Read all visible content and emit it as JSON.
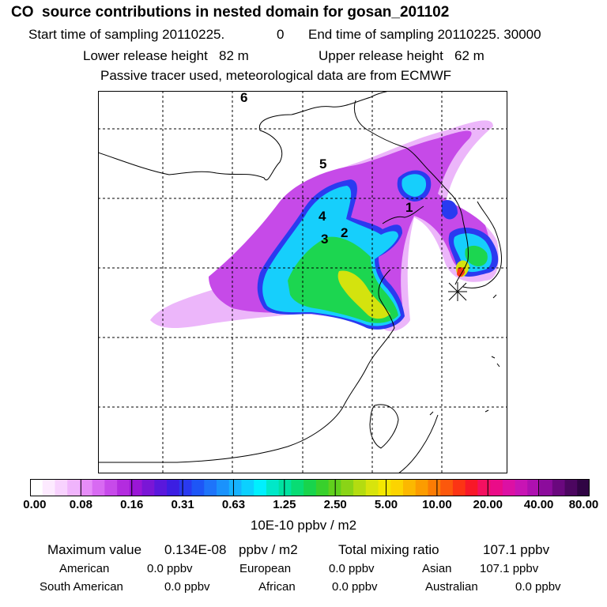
{
  "header": {
    "title": "CO  source contributions in nested domain for gosan_201102",
    "start_label": "Start time of sampling 20110225.",
    "start_value": "0",
    "end_label": "End time of sampling 20110225. 30000",
    "lower_label": "Lower release height   82 m",
    "upper_label": "Upper release height   62 m",
    "note": "Passive tracer used, meteorological data are from ECMWF"
  },
  "chart_data": {
    "type": "heatmap",
    "title": "CO  source contributions in nested domain for gosan_201102",
    "grid": "dashed",
    "region_labels": [
      "1",
      "2",
      "3",
      "4",
      "5",
      "6"
    ],
    "colorbar": {
      "tick_labels": [
        "0.00",
        "0.08",
        "0.16",
        "0.31",
        "0.63",
        "1.25",
        "2.50",
        "5.00",
        "10.00",
        "20.00",
        "40.00",
        "80.00"
      ],
      "tick_values": [
        0.0,
        0.08,
        0.16,
        0.31,
        0.63,
        1.25,
        2.5,
        5.0,
        10.0,
        20.0,
        40.0,
        80.0
      ],
      "colors": [
        "#ffffff",
        "#fdeaff",
        "#f8d2fe",
        "#f0b4fc",
        "#e68cf8",
        "#d86af2",
        "#c74aea",
        "#b32cdf",
        "#9a16d6",
        "#7a16d6",
        "#5a18dc",
        "#3c1ee2",
        "#2a3af0",
        "#1e56f6",
        "#1e74fa",
        "#1a92fc",
        "#16b2fe",
        "#0cd0fe",
        "#00f0fe",
        "#00e8c8",
        "#00e2a0",
        "#08dc74",
        "#18d44c",
        "#38d02c",
        "#60d01c",
        "#8ad416",
        "#b4dc10",
        "#d8e40c",
        "#f4e800",
        "#fcd400",
        "#fcb800",
        "#fc9c00",
        "#fc7c04",
        "#fc580c",
        "#fc3414",
        "#f81828",
        "#f41060",
        "#ea0c88",
        "#dc10a4",
        "#c814b4",
        "#ae10b0",
        "#8c0c9c",
        "#6a087e",
        "#4c0660",
        "#300444"
      ],
      "units": "10E-10 ppbv / m2"
    },
    "annotations": {
      "max_label": "Maximum value",
      "max_value": "0.134E-08",
      "max_units": "ppbv / m2",
      "total_label": "Total mixing ratio",
      "total_value": "107.1 ppbv"
    },
    "contributions": [
      {
        "region": "American",
        "value": "0.0 ppbv"
      },
      {
        "region": "European",
        "value": "0.0 ppbv"
      },
      {
        "region": "Asian",
        "value": "107.1 ppbv"
      },
      {
        "region": "South American",
        "value": "0.0 ppbv"
      },
      {
        "region": "African",
        "value": "0.0 ppbv"
      },
      {
        "region": "Australian",
        "value": "0.0 ppbv"
      }
    ]
  }
}
